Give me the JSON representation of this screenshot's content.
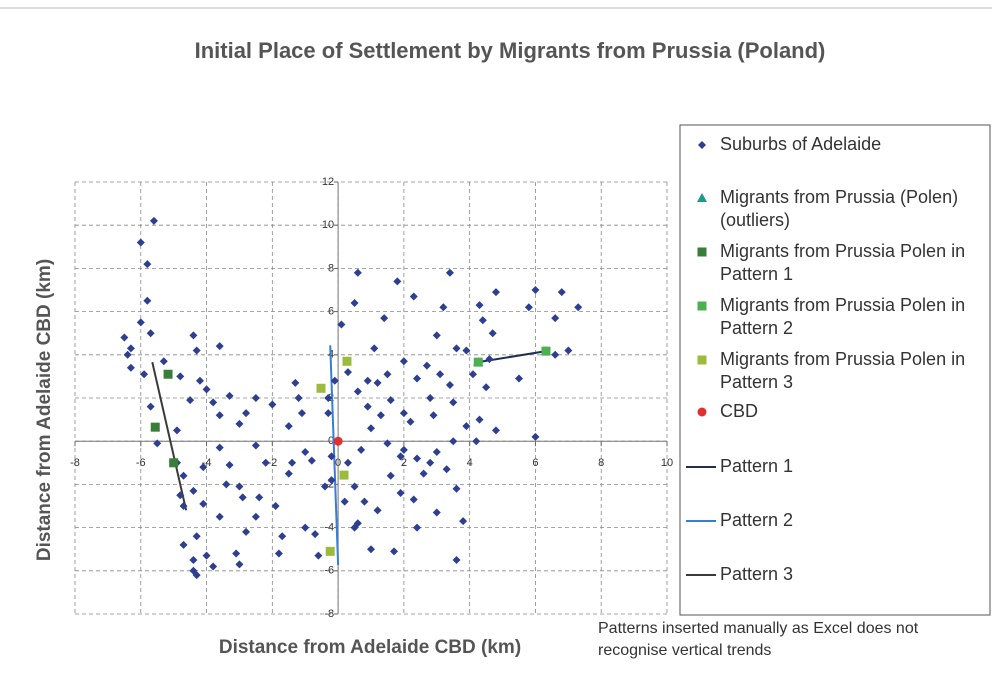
{
  "chart_data": {
    "type": "scatter",
    "title": "Initial Place of Settlement by Migrants from Prussia (Poland)",
    "x_label": "Distance from Adelaide CBD (km)",
    "y_label": "Distance from Adelaide CBD (km)",
    "annotation": "Patterns inserted manually as Excel does not recognise vertical trends",
    "xlim": [
      -8,
      10
    ],
    "xticks": [
      -8,
      -6,
      -4,
      -2,
      0,
      2,
      4,
      6,
      8,
      10
    ],
    "ylim": [
      -8,
      12
    ],
    "yticks": [
      -8,
      -6,
      -4,
      -2,
      0,
      2,
      4,
      6,
      8,
      10,
      12
    ],
    "grid": true,
    "legend": "right",
    "series": [
      {
        "name": "Suburbs of Adelaide",
        "marker": "diamond",
        "color": "#2e3f8f",
        "x": [
          -5.6,
          -6,
          -5.8,
          -5.8,
          -6,
          -6.5,
          -6.3,
          -6.4,
          -6.3,
          -5.9,
          -5.7,
          -5.3,
          -4.8,
          -4.4,
          -4.3,
          -3.6,
          -4.2,
          -4,
          -3.8,
          -3.3,
          -4.5,
          -5.7,
          -5.5,
          -4.9,
          -4.9,
          -4.7,
          -4.8,
          -4.7,
          -4.4,
          -4.1,
          -4.7,
          -4.3,
          -4,
          -4.4,
          -4.4,
          -4.3,
          -3.8,
          -3.6,
          -4.1,
          -3.6,
          -3.3,
          -3.4,
          -3,
          -3,
          -2.8,
          -2.5,
          -3.1,
          -3,
          -2.8,
          -2.5,
          -2.4,
          -2.2,
          -2,
          -1.9,
          -1.5,
          -1.7,
          -1.8,
          -1.4,
          -1.2,
          -1.5,
          -1,
          -1,
          -0.7,
          -0.6,
          -0.4,
          -0.8,
          -0.3,
          -0.2,
          -0.1,
          -0.3,
          -0.2,
          -1.3,
          -2.5,
          -3.6,
          -2.9,
          -1.1,
          0.6,
          0.5,
          0.1,
          0.3,
          0.6,
          0.9,
          1.2,
          1.1,
          1.4,
          1.8,
          2.3,
          2,
          1.5,
          1.6,
          2,
          2.4,
          2.8,
          3,
          3.1,
          3.2,
          3.4,
          3.6,
          3.5,
          3.9,
          4.3,
          4.4,
          4.7,
          4.8,
          5.8,
          6,
          6.6,
          6.8,
          7.3,
          7,
          6.6,
          5.5,
          4.6,
          4.5,
          4.3,
          3.9,
          4.2,
          4.8,
          6,
          3.5,
          3,
          3.3,
          2.8,
          2.4,
          2,
          1.5,
          1,
          0.7,
          0.3,
          0.5,
          0.8,
          0.6,
          1.2,
          1.6,
          1.9,
          2.3,
          2.4,
          1.7,
          1,
          0.5,
          3,
          3.6,
          3.8,
          3.6,
          2.6,
          1.3,
          2.2,
          3.4,
          2.7,
          0.2,
          0.9,
          1.9,
          4.1,
          2.9
        ],
        "values": [
          10.2,
          9.2,
          8.2,
          6.5,
          5.5,
          4.8,
          4.3,
          4,
          3.4,
          3.1,
          5,
          3.7,
          3,
          4.9,
          4.2,
          4.4,
          2.8,
          2.4,
          1.8,
          2.1,
          1.9,
          1.6,
          -0.1,
          0.5,
          -1,
          -1.6,
          -2.5,
          -3,
          -2.3,
          -2.9,
          -4.8,
          -4.4,
          -5.3,
          -5.5,
          -6,
          -6.2,
          -5.8,
          -3.5,
          -1.2,
          -0.3,
          -1.1,
          -2,
          -2.1,
          0.8,
          1.3,
          -0.2,
          -5.2,
          -5.7,
          -4.2,
          -3.5,
          -2.6,
          -1,
          1.7,
          -3,
          -1.5,
          -4.4,
          -5.2,
          -1,
          2,
          0.7,
          -0.5,
          -4,
          -4.3,
          -5.3,
          -2.1,
          -0.9,
          1.3,
          -1.8,
          2.8,
          2,
          -0.7,
          2.7,
          2,
          1.2,
          -2.6,
          1.3,
          7.8,
          6.4,
          5.4,
          3.2,
          2.3,
          2.8,
          2.7,
          4.3,
          5.7,
          7.4,
          6.7,
          3.7,
          3.1,
          1.9,
          1.3,
          2.9,
          2,
          4.9,
          3.1,
          6.2,
          7.8,
          4.3,
          1.8,
          4.2,
          6.3,
          5.6,
          5,
          6.9,
          6.2,
          7,
          5.7,
          6.9,
          6.2,
          4.2,
          4,
          2.9,
          3.8,
          2.5,
          1,
          0.7,
          0,
          0.5,
          0.2,
          0,
          -0.5,
          -1.3,
          -1,
          -0.8,
          -0.4,
          -0.1,
          0.6,
          -0.4,
          -1,
          -2.1,
          -2.8,
          -3.8,
          -3.2,
          -1.6,
          -2.4,
          -2.7,
          -4,
          -5.1,
          -5,
          -4,
          -3.3,
          -2.2,
          -3.7,
          -5.5,
          -1.5,
          1.2,
          0.9,
          2.6,
          3.5,
          -2.8,
          1.6,
          -0.7,
          3.1,
          1.2
        ]
      },
      {
        "name": "Migrants from Prussia (Polen) (outliers)",
        "marker": "triangle",
        "color": "#1a9a8a",
        "x": [
          4.26,
          6.32
        ],
        "values": [
          3.66,
          4.17
        ]
      },
      {
        "name": "Migrants from Prussia Polen in Pattern 1",
        "marker": "square",
        "color": "#3a7d3a",
        "x": [
          -5.17,
          -5.56,
          -5.0
        ],
        "values": [
          3.1,
          0.65,
          -1.0
        ]
      },
      {
        "name": "Migrants from Prussia Polen in Pattern 2",
        "marker": "square",
        "color": "#4cb050",
        "x": [
          4.26,
          6.32
        ],
        "values": [
          3.66,
          4.17
        ]
      },
      {
        "name": "Migrants from Prussia Polen in Pattern 3",
        "marker": "square",
        "color": "#9bbb3c",
        "x": [
          -0.52,
          0.27,
          0.18,
          -0.24
        ],
        "values": [
          2.45,
          3.7,
          -1.57,
          -5.1
        ]
      },
      {
        "name": "CBD",
        "marker": "circle",
        "color": "#e03030",
        "x": [
          0
        ],
        "values": [
          0
        ]
      },
      {
        "name": "Pattern 1",
        "type": "line",
        "color": "#1f2f4f",
        "x": [
          4.26,
          6.32
        ],
        "values": [
          3.66,
          4.17
        ]
      },
      {
        "name": "Pattern 2",
        "type": "line",
        "color": "#3a7bd5",
        "x": [
          -0.24,
          0.0
        ],
        "values": [
          4.44,
          -5.74
        ]
      },
      {
        "name": "Pattern 3",
        "type": "line",
        "color": "#3a3a3a",
        "x": [
          -5.65,
          -4.62
        ],
        "values": [
          3.66,
          -3.2
        ]
      }
    ]
  }
}
